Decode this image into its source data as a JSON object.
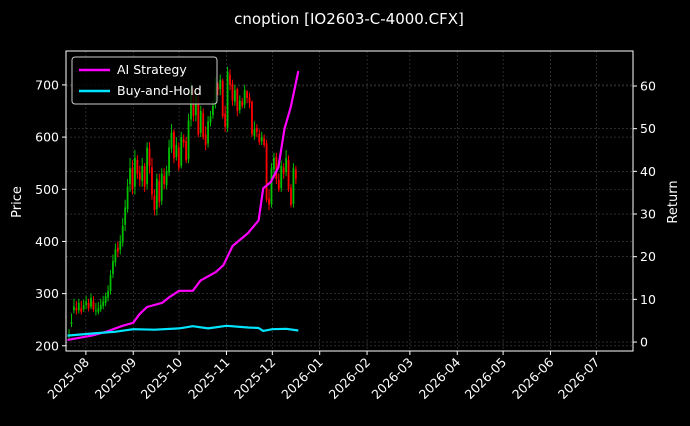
{
  "chart_data": {
    "type": "line",
    "title": "cnoption [IO2603-C-4000.CFX]",
    "xlabel": "",
    "ylabel_left": "Price",
    "ylabel_right": "Return",
    "x_ticks": [
      "2025-08",
      "2025-09",
      "2025-10",
      "2025-11",
      "2025-12",
      "2026-01",
      "2026-02",
      "2026-03",
      "2026-04",
      "2026-05",
      "2026-06",
      "2026-07"
    ],
    "x_range": [
      "2025-07-19",
      "2026-07-25"
    ],
    "y_left_ticks": [
      200,
      300,
      400,
      500,
      600,
      700
    ],
    "y_left_range": [
      190,
      765
    ],
    "y_right_ticks": [
      0,
      10,
      20,
      30,
      40,
      50,
      60
    ],
    "y_right_range": [
      -2.1,
      68.2
    ],
    "grid": true,
    "legend_position": "top-left",
    "colors": {
      "up": "#00c000",
      "down": "#ff0000",
      "ai": "#ff00ff",
      "bh": "#00e5ff",
      "grid": "#444444"
    },
    "candles": {
      "start": "2025-07-21",
      "closes": [
        220,
        245,
        275,
        268,
        282,
        265,
        278,
        285,
        272,
        292,
        270,
        268,
        272,
        278,
        285,
        295,
        305,
        335,
        362,
        385,
        380,
        400,
        430,
        465,
        505,
        540,
        500,
        560,
        530,
        518,
        545,
        505,
        580,
        545,
        490,
        460,
        520,
        475,
        530,
        510,
        535,
        580,
        608,
        560,
        585,
        542,
        600,
        590,
        556,
        632,
        690,
        640,
        678,
        605,
        650,
        600,
        585,
        630,
        640,
        660,
        700,
        690,
        710,
        640,
        620,
        725,
        700,
        670,
        690,
        650,
        670,
        660,
        690,
        675,
        665,
        605,
        615,
        610,
        590,
        600,
        585,
        480,
        470,
        540,
        560,
        520,
        500,
        545,
        530,
        560,
        500,
        470,
        540,
        520
      ],
      "opens": [
        218,
        242,
        268,
        272,
        268,
        272,
        270,
        278,
        282,
        275,
        285,
        266,
        264,
        270,
        276,
        282,
        292,
        305,
        338,
        360,
        388,
        384,
        398,
        432,
        462,
        510,
        540,
        505,
        556,
        532,
        516,
        544,
        510,
        578,
        542,
        488,
        462,
        516,
        478,
        526,
        508,
        532,
        578,
        610,
        562,
        580,
        545,
        595,
        592,
        558,
        634,
        688,
        642,
        676,
        608,
        646,
        605,
        588,
        628,
        642,
        664,
        696,
        692,
        708,
        645,
        618,
        720,
        702,
        668,
        692,
        652,
        668,
        662,
        688,
        676,
        668,
        602,
        618,
        606,
        592,
        598,
        588,
        482,
        472,
        538,
        562,
        518,
        502,
        542,
        533,
        556,
        503,
        472,
        538
      ],
      "highs": [
        232,
        262,
        290,
        286,
        290,
        286,
        288,
        296,
        290,
        300,
        295,
        282,
        284,
        290,
        296,
        302,
        316,
        345,
        375,
        396,
        400,
        412,
        445,
        480,
        520,
        560,
        555,
        575,
        565,
        545,
        560,
        550,
        590,
        590,
        560,
        500,
        530,
        530,
        540,
        540,
        545,
        595,
        625,
        615,
        600,
        590,
        610,
        605,
        600,
        645,
        705,
        695,
        690,
        685,
        660,
        655,
        620,
        640,
        650,
        670,
        715,
        705,
        720,
        712,
        660,
        735,
        730,
        710,
        700,
        695,
        680,
        675,
        700,
        690,
        685,
        670,
        630,
        625,
        615,
        610,
        605,
        595,
        500,
        550,
        570,
        570,
        530,
        555,
        550,
        575,
        565,
        510,
        550,
        545
      ],
      "lows": [
        210,
        236,
        262,
        260,
        262,
        260,
        265,
        270,
        266,
        270,
        265,
        258,
        260,
        265,
        270,
        276,
        285,
        298,
        330,
        352,
        370,
        375,
        390,
        420,
        455,
        495,
        490,
        490,
        520,
        505,
        505,
        495,
        500,
        530,
        480,
        450,
        450,
        465,
        470,
        500,
        500,
        525,
        570,
        550,
        555,
        535,
        540,
        580,
        550,
        550,
        620,
        630,
        630,
        600,
        600,
        595,
        575,
        580,
        620,
        635,
        655,
        680,
        680,
        635,
        610,
        610,
        690,
        660,
        660,
        640,
        645,
        655,
        655,
        665,
        655,
        600,
        595,
        600,
        585,
        585,
        580,
        475,
        460,
        465,
        530,
        510,
        495,
        495,
        520,
        525,
        495,
        465,
        465,
        510
      ]
    },
    "series": [
      {
        "name": "AI Strategy",
        "color": "#ff00ff",
        "x": [
          "2025-07-20",
          "2025-08-05",
          "2025-08-15",
          "2025-08-25",
          "2025-09-01",
          "2025-09-05",
          "2025-09-10",
          "2025-09-20",
          "2025-09-25",
          "2025-10-01",
          "2025-10-10",
          "2025-10-15",
          "2025-10-25",
          "2025-10-30",
          "2025-11-05",
          "2025-11-15",
          "2025-11-22",
          "2025-11-25",
          "2025-11-30",
          "2025-12-05",
          "2025-12-09",
          "2025-12-13",
          "2025-12-16",
          "2025-12-18"
        ],
        "values": [
          0.5,
          1.5,
          2.5,
          3.8,
          4.5,
          6.5,
          8.2,
          9.2,
          10.6,
          12.0,
          12.0,
          14.4,
          16.4,
          18.0,
          22.5,
          25.5,
          28.5,
          36.0,
          37.5,
          41.0,
          50.0,
          55.0,
          60.0,
          63.5
        ]
      },
      {
        "name": "Buy-and-Hold",
        "color": "#00e5ff",
        "x": [
          "2025-07-20",
          "2025-08-05",
          "2025-08-20",
          "2025-09-01",
          "2025-09-15",
          "2025-10-01",
          "2025-10-10",
          "2025-10-20",
          "2025-11-01",
          "2025-11-15",
          "2025-11-22",
          "2025-11-25",
          "2025-12-01",
          "2025-12-10",
          "2025-12-18"
        ],
        "values": [
          1.5,
          2.0,
          2.4,
          3.0,
          2.9,
          3.2,
          3.7,
          3.2,
          3.8,
          3.4,
          3.3,
          2.6,
          3.0,
          3.1,
          2.7
        ]
      }
    ]
  }
}
